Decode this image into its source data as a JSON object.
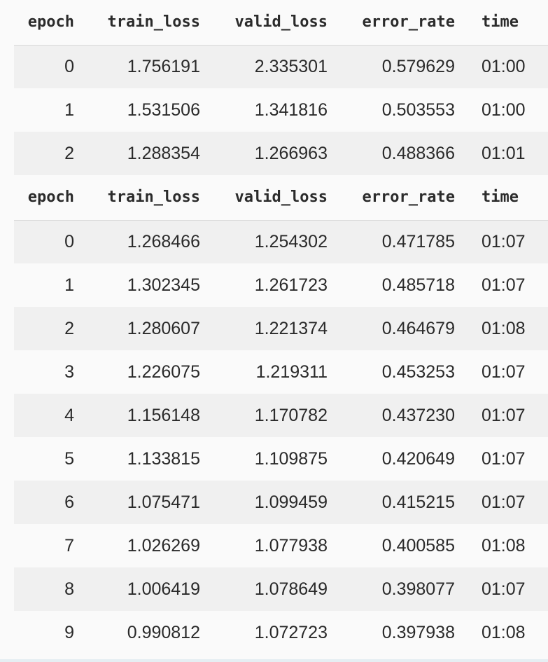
{
  "headers": [
    "epoch",
    "train_loss",
    "valid_loss",
    "error_rate",
    "time"
  ],
  "tables": [
    {
      "rows": [
        [
          "0",
          "1.756191",
          "2.335301",
          "0.579629",
          "01:00"
        ],
        [
          "1",
          "1.531506",
          "1.341816",
          "0.503553",
          "01:00"
        ],
        [
          "2",
          "1.288354",
          "1.266963",
          "0.488366",
          "01:01"
        ]
      ]
    },
    {
      "rows": [
        [
          "0",
          "1.268466",
          "1.254302",
          "0.471785",
          "01:07"
        ],
        [
          "1",
          "1.302345",
          "1.261723",
          "0.485718",
          "01:07"
        ],
        [
          "2",
          "1.280607",
          "1.221374",
          "0.464679",
          "01:08"
        ],
        [
          "3",
          "1.226075",
          "1.219311",
          "0.453253",
          "01:07"
        ],
        [
          "4",
          "1.156148",
          "1.170782",
          "0.437230",
          "01:07"
        ],
        [
          "5",
          "1.133815",
          "1.109875",
          "0.420649",
          "01:07"
        ],
        [
          "6",
          "1.075471",
          "1.099459",
          "0.415215",
          "01:07"
        ],
        [
          "7",
          "1.026269",
          "1.077938",
          "0.400585",
          "01:08"
        ],
        [
          "8",
          "1.006419",
          "1.078649",
          "0.398077",
          "01:07"
        ],
        [
          "9",
          "0.990812",
          "1.072723",
          "0.397938",
          "01:08"
        ]
      ]
    }
  ]
}
